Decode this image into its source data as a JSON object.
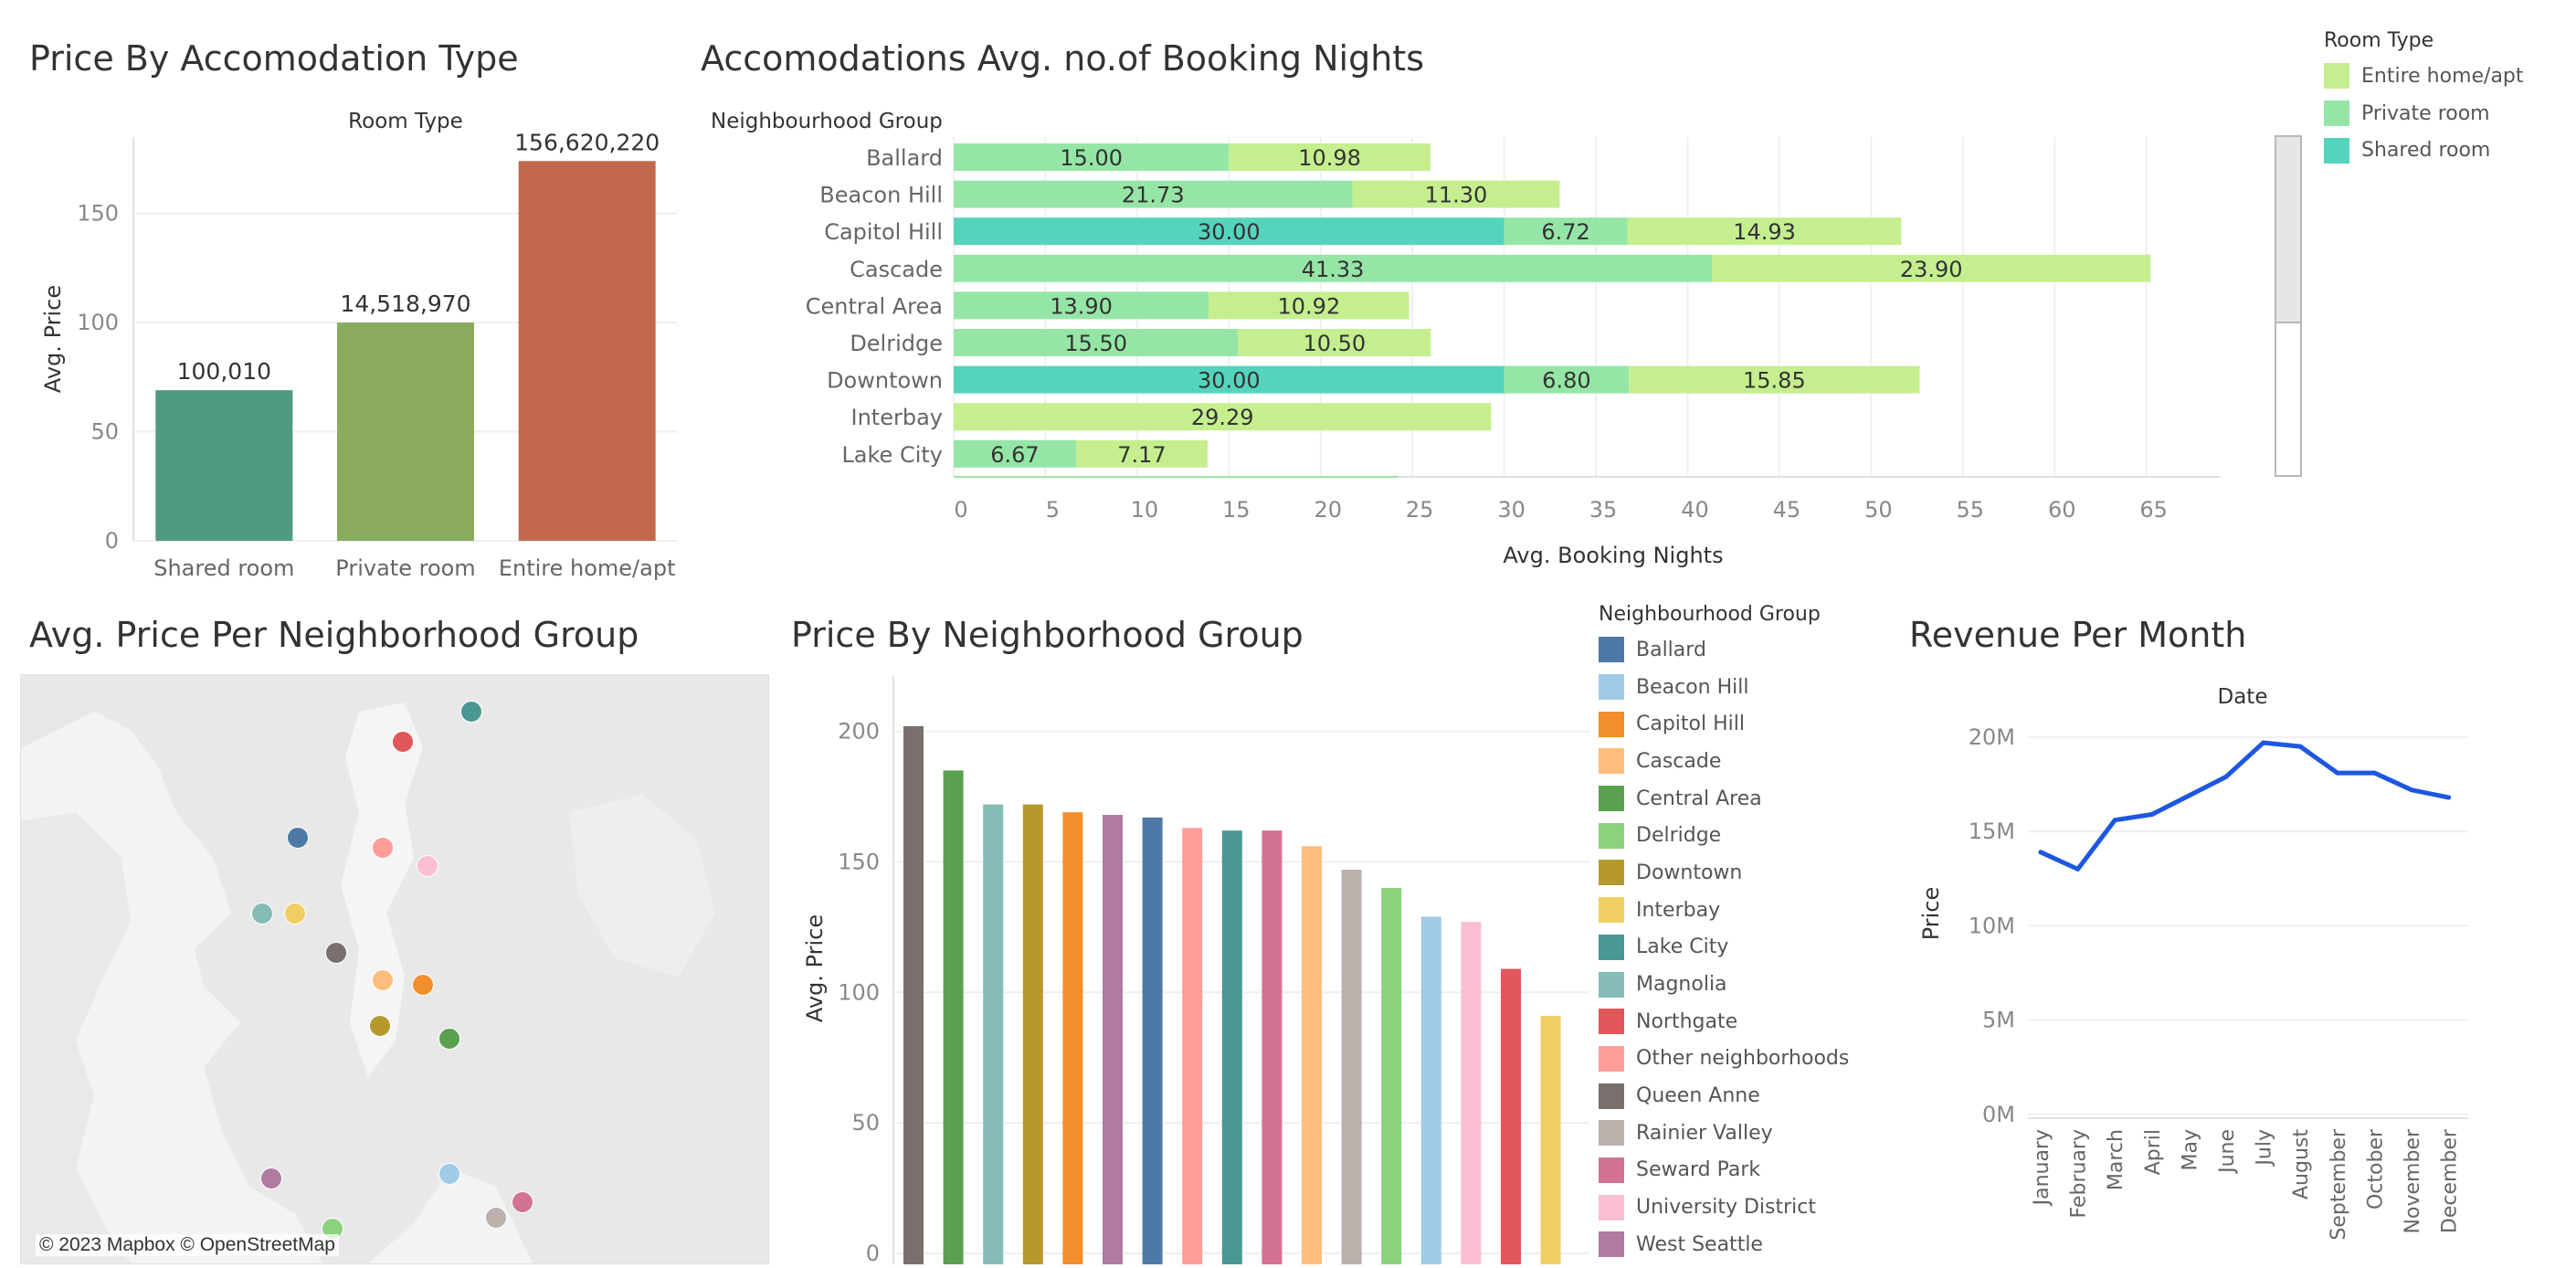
{
  "panels": {
    "price_by_type_title": "Price By Accomodation Type",
    "booking_nights_title": "Accomodations Avg. no.of Booking Nights",
    "map_title": "Avg. Price Per Neighborhood Group",
    "price_by_group_title": "Price By Neighborhood Group",
    "revenue_title": "Revenue Per Month"
  },
  "legends": {
    "room_type": {
      "title": "Room Type",
      "items": [
        {
          "label": "Entire home/apt",
          "color": "#c5ef8f"
        },
        {
          "label": "Private room",
          "color": "#95e6a6"
        },
        {
          "label": "Shared room",
          "color": "#55d4bd"
        }
      ]
    },
    "neighbourhood_group": {
      "title": "Neighbourhood Group",
      "items": [
        {
          "label": "Ballard",
          "color": "#4e79a7"
        },
        {
          "label": "Beacon Hill",
          "color": "#a0cbe8"
        },
        {
          "label": "Capitol Hill",
          "color": "#f28e2b"
        },
        {
          "label": "Cascade",
          "color": "#ffbe7d"
        },
        {
          "label": "Central Area",
          "color": "#59a14f"
        },
        {
          "label": "Delridge",
          "color": "#8cd17d"
        },
        {
          "label": "Downtown",
          "color": "#b6992d"
        },
        {
          "label": "Interbay",
          "color": "#f1ce63"
        },
        {
          "label": "Lake City",
          "color": "#499894"
        },
        {
          "label": "Magnolia",
          "color": "#86bcb6"
        },
        {
          "label": "Northgate",
          "color": "#e15759"
        },
        {
          "label": "Other neighborhoods",
          "color": "#ff9d9a"
        },
        {
          "label": "Queen Anne",
          "color": "#79706e"
        },
        {
          "label": "Rainier Valley",
          "color": "#bab0ac"
        },
        {
          "label": "Seward Park",
          "color": "#d37295"
        },
        {
          "label": "University District",
          "color": "#fabfd2"
        },
        {
          "label": "West Seattle",
          "color": "#b07aa1"
        }
      ]
    }
  },
  "map": {
    "credit": "© 2023 Mapbox © OpenStreetMap",
    "points": [
      {
        "group": "Lake City",
        "color": "#499894"
      },
      {
        "group": "Northgate",
        "color": "#e15759"
      },
      {
        "group": "Ballard",
        "color": "#4e79a7"
      },
      {
        "group": "Other neighborhoods",
        "color": "#ff9d9a"
      },
      {
        "group": "University District",
        "color": "#fabfd2"
      },
      {
        "group": "Magnolia",
        "color": "#86bcb6"
      },
      {
        "group": "Interbay",
        "color": "#f1ce63"
      },
      {
        "group": "Queen Anne",
        "color": "#79706e"
      },
      {
        "group": "Cascade",
        "color": "#ffbe7d"
      },
      {
        "group": "Capitol Hill",
        "color": "#f28e2b"
      },
      {
        "group": "Downtown",
        "color": "#b6992d"
      },
      {
        "group": "Central Area",
        "color": "#59a14f"
      },
      {
        "group": "West Seattle",
        "color": "#b07aa1"
      },
      {
        "group": "Beacon Hill",
        "color": "#a0cbe8"
      },
      {
        "group": "Delridge",
        "color": "#8cd17d"
      },
      {
        "group": "Rainier Valley",
        "color": "#bab0ac"
      },
      {
        "group": "Seward Park",
        "color": "#d37295"
      }
    ]
  },
  "chart_data": [
    {
      "id": "price_by_type",
      "type": "bar",
      "title": "Price By Accomodation Type",
      "header": "Room Type",
      "categories": [
        "Shared room",
        "Private room",
        "Entire home/apt"
      ],
      "values": [
        69,
        100,
        174
      ],
      "data_labels": [
        "100,010",
        "14,518,970",
        "156,620,220"
      ],
      "colors": [
        "#4f9a83",
        "#8aab5e",
        "#c2694d"
      ],
      "ylabel": "Avg. Price",
      "yticks": [
        0,
        50,
        100,
        150
      ],
      "ylim": [
        0,
        185
      ]
    },
    {
      "id": "booking_nights",
      "type": "bar",
      "orientation": "horizontal",
      "stacked": true,
      "title": "Accomodations Avg. no.of Booking Nights",
      "row_header": "Neighbourhood Group",
      "categories": [
        "Ballard",
        "Beacon Hill",
        "Capitol Hill",
        "Cascade",
        "Central Area",
        "Delridge",
        "Downtown",
        "Interbay",
        "Lake City"
      ],
      "series": [
        {
          "name": "Shared room",
          "color": "#55d4bd",
          "values": [
            null,
            null,
            30.0,
            null,
            null,
            null,
            30.0,
            null,
            null
          ],
          "labels": [
            "",
            "",
            "30.00",
            "",
            "",
            "",
            "30.00",
            "",
            ""
          ]
        },
        {
          "name": "Private room",
          "color": "#95e6a6",
          "values": [
            15.0,
            21.73,
            6.72,
            41.33,
            13.9,
            15.5,
            6.8,
            null,
            6.67
          ],
          "labels": [
            "15.00",
            "21.73",
            "6.72",
            "41.33",
            "13.90",
            "15.50",
            "6.80",
            "",
            "6.67"
          ]
        },
        {
          "name": "Entire home/apt",
          "color": "#c5ef8f",
          "values": [
            10.98,
            11.3,
            14.93,
            23.9,
            10.92,
            10.5,
            15.85,
            29.29,
            7.17
          ],
          "labels": [
            "10.98",
            "11.30",
            "14.93",
            "23.90",
            "10.92",
            "10.50",
            "15.85",
            "29.29",
            "7.17"
          ]
        }
      ],
      "xlabel": "Avg. Booking Nights",
      "xticks": [
        0,
        5,
        10,
        15,
        20,
        25,
        30,
        35,
        40,
        45,
        50,
        55,
        60,
        65
      ],
      "xlim": [
        0,
        69
      ]
    },
    {
      "id": "price_by_group",
      "type": "bar",
      "title": "Price By Neighborhood Group",
      "categories": [
        "Queen Anne",
        "Central Area",
        "Magnolia",
        "Downtown",
        "Capitol Hill",
        "West Seattle",
        "Ballard",
        "Other neighborhoods",
        "Lake City",
        "Seward Park",
        "Cascade",
        "Rainier Valley",
        "Delridge",
        "Beacon Hill",
        "University District",
        "Northgate",
        "Interbay"
      ],
      "values": [
        202,
        185,
        172,
        172,
        169,
        168,
        167,
        163,
        162,
        162,
        156,
        147,
        140,
        129,
        127,
        109,
        91
      ],
      "colors": [
        "#79706e",
        "#59a14f",
        "#86bcb6",
        "#b6992d",
        "#f28e2b",
        "#b07aa1",
        "#4e79a7",
        "#ff9d9a",
        "#499894",
        "#d37295",
        "#ffbe7d",
        "#bab0ac",
        "#8cd17d",
        "#a0cbe8",
        "#fabfd2",
        "#e15759",
        "#f1ce63"
      ],
      "ylabel": "Avg. Price",
      "yticks": [
        0,
        50,
        100,
        150,
        200
      ],
      "ylim": [
        0,
        210
      ]
    },
    {
      "id": "revenue",
      "type": "line",
      "title": "Revenue Per Month",
      "header": "Date",
      "x": [
        "January",
        "February",
        "March",
        "April",
        "May",
        "June",
        "July",
        "August",
        "September",
        "October",
        "November",
        "December"
      ],
      "values": [
        13.9,
        13.0,
        15.6,
        15.9,
        16.9,
        17.9,
        19.7,
        19.5,
        18.1,
        18.1,
        17.2,
        16.8
      ],
      "ylabel": "Price",
      "yticks": [
        0,
        5,
        10,
        15,
        20
      ],
      "ytick_labels": [
        "0M",
        "5M",
        "10M",
        "15M",
        "20M"
      ],
      "ylim": [
        -0.2,
        21.3
      ],
      "color": "#1d56e0"
    }
  ]
}
